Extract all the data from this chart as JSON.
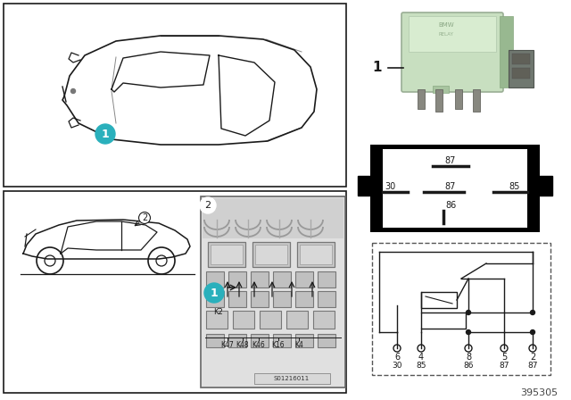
{
  "bg_color": "#f5f5f5",
  "line_color": "#1a1a1a",
  "teal_color": "#2ab0bc",
  "relay_green": "#c8dfc0",
  "relay_green_dark": "#a8c4a0",
  "gray_med": "#888888",
  "gray_light": "#cccccc",
  "gray_dark": "#555555",
  "part_number": "395305",
  "diagram_ref": "S01216011",
  "pin_nums1": [
    "6",
    "4",
    "8",
    "5",
    "2"
  ],
  "pin_nums2": [
    "30",
    "85",
    "86",
    "87",
    "87"
  ],
  "relay_box_labels": [
    "87",
    "30",
    "87",
    "85",
    "86"
  ],
  "fuse_labels": [
    "K47",
    "K48",
    "K46",
    "K16",
    "K4"
  ],
  "k2_label": "K2"
}
